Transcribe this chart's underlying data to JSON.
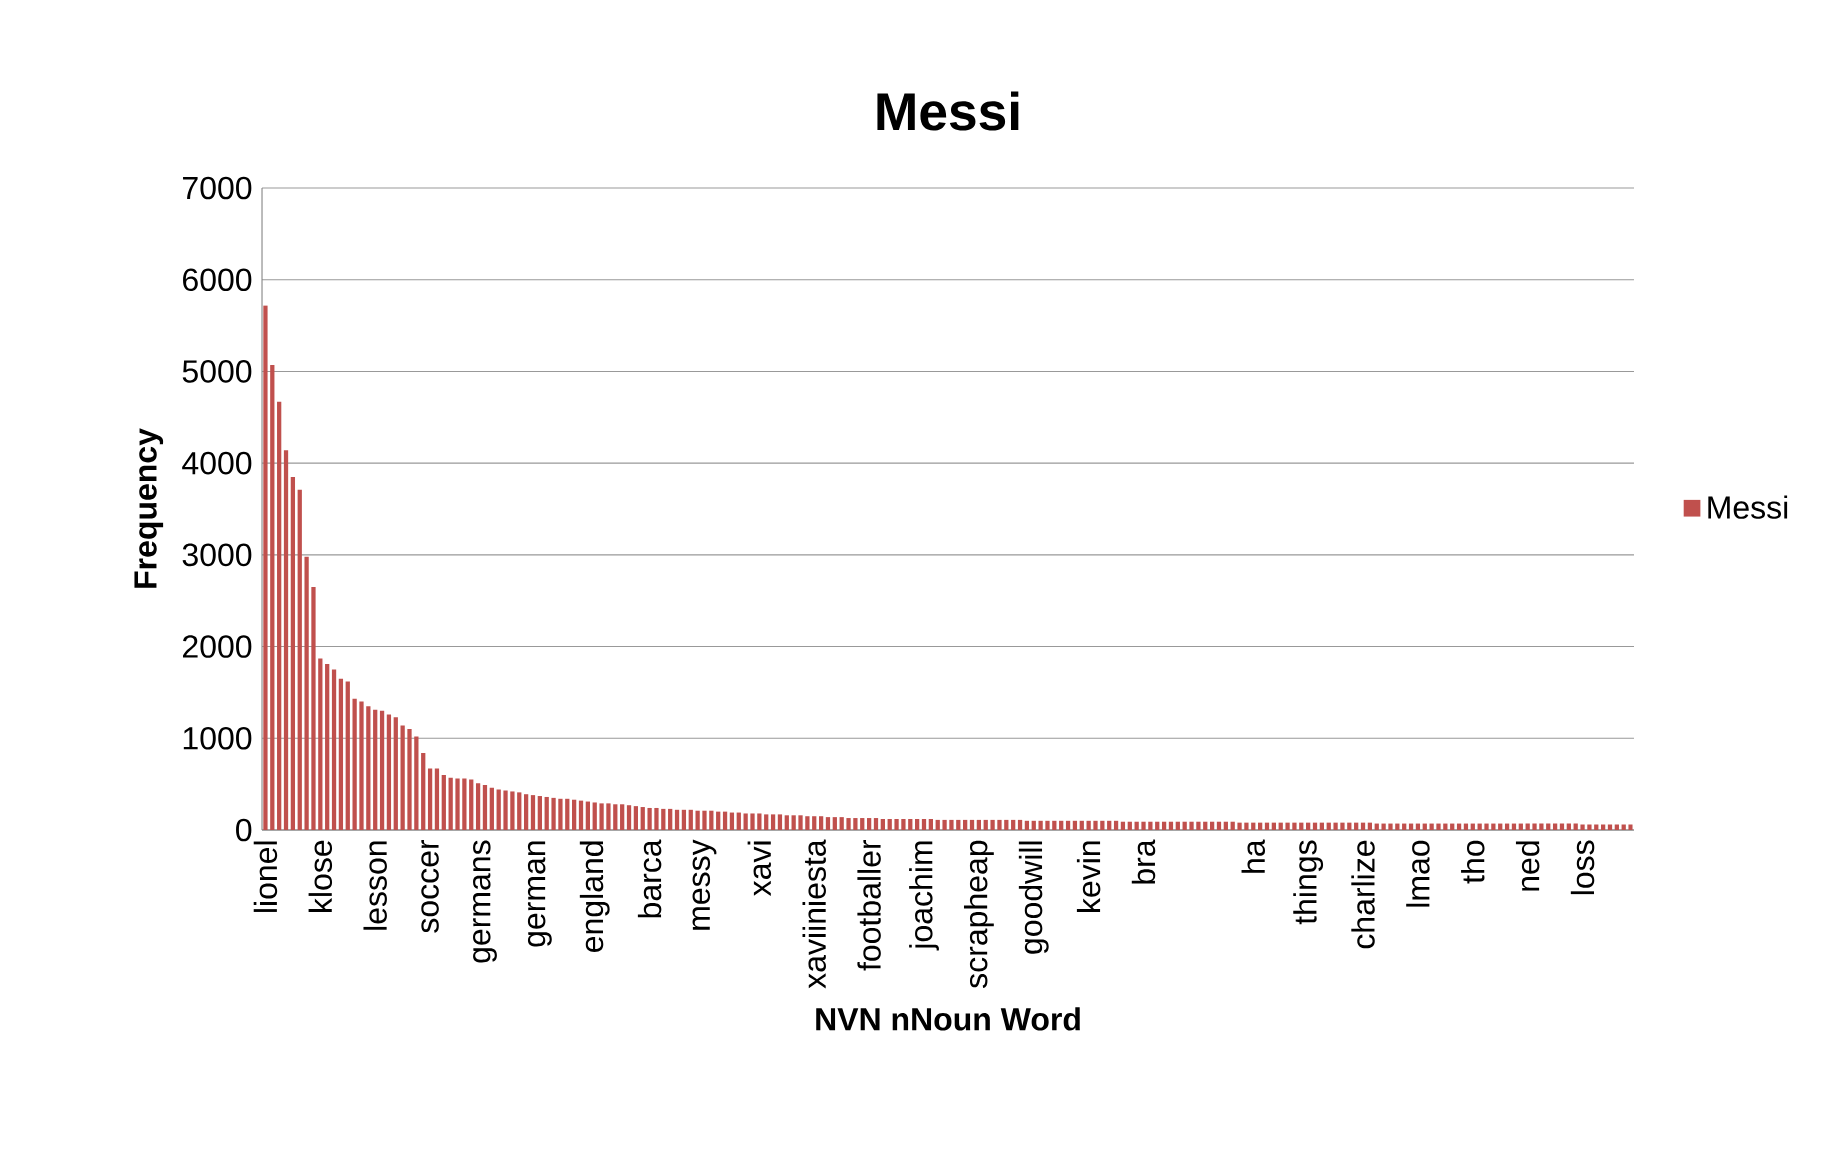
{
  "chart_data": {
    "type": "bar",
    "title": "Messi",
    "xlabel": "NVN nNoun Word",
    "ylabel": "Frequency",
    "categories": [
      "lionel",
      null,
      null,
      null,
      null,
      null,
      null,
      null,
      "klose",
      null,
      null,
      null,
      null,
      null,
      null,
      null,
      "lesson",
      null,
      null,
      null,
      null,
      null,
      null,
      null,
      "soccer",
      null,
      null,
      null,
      null,
      null,
      null,
      null,
      "germans",
      null,
      null,
      null,
      null,
      null,
      null,
      null,
      "german",
      null,
      null,
      null,
      null,
      null,
      null,
      null,
      "england",
      null,
      null,
      null,
      null,
      null,
      null,
      null,
      "barca",
      null,
      null,
      null,
      null,
      null,
      null,
      null,
      "messy",
      null,
      null,
      null,
      null,
      null,
      null,
      null,
      "xavi",
      null,
      null,
      null,
      null,
      null,
      null,
      null,
      "xaviiniesta",
      null,
      null,
      null,
      null,
      null,
      null,
      null,
      "footballer",
      null,
      null,
      null,
      null,
      null,
      null,
      null,
      "joachim",
      null,
      null,
      null,
      null,
      null,
      null,
      null,
      "scrapheap",
      null,
      null,
      null,
      null,
      null,
      null,
      null,
      "goodwill",
      null,
      null,
      null,
      null,
      null,
      null,
      null,
      "kevin",
      null,
      null,
      null,
      null,
      null,
      null,
      null,
      "bra",
      null,
      null,
      null,
      null,
      null,
      null,
      null,
      null,
      null,
      null,
      null,
      null,
      null,
      null,
      null,
      "ha",
      null,
      null,
      null,
      null,
      null,
      null,
      null,
      "things",
      null,
      null,
      null,
      null,
      null,
      null,
      null,
      "charlize",
      null,
      null,
      null,
      null,
      null,
      null,
      null,
      "lmao",
      null,
      null,
      null,
      null,
      null,
      null,
      null,
      "tho",
      null,
      null,
      null,
      null,
      null,
      null,
      null,
      "ned",
      null,
      null,
      null,
      null,
      null,
      null,
      null,
      "loss",
      null,
      null,
      null,
      null,
      null,
      null,
      null
    ],
    "series": [
      {
        "name": "Messi",
        "color": "#c0504d",
        "values": [
          5720,
          5070,
          4670,
          4140,
          3850,
          3710,
          2980,
          2650,
          1870,
          1810,
          1750,
          1650,
          1620,
          1430,
          1400,
          1350,
          1310,
          1300,
          1260,
          1230,
          1140,
          1100,
          1020,
          840,
          670,
          670,
          600,
          570,
          560,
          560,
          550,
          510,
          490,
          460,
          440,
          430,
          420,
          410,
          390,
          380,
          370,
          360,
          350,
          340,
          340,
          330,
          320,
          310,
          300,
          290,
          290,
          280,
          280,
          270,
          260,
          250,
          240,
          240,
          230,
          230,
          220,
          220,
          220,
          210,
          210,
          210,
          200,
          200,
          190,
          190,
          180,
          180,
          180,
          170,
          170,
          170,
          160,
          160,
          160,
          150,
          150,
          150,
          140,
          140,
          140,
          130,
          130,
          130,
          130,
          130,
          120,
          120,
          120,
          120,
          120,
          120,
          120,
          120,
          110,
          110,
          110,
          110,
          110,
          110,
          110,
          110,
          110,
          110,
          110,
          110,
          110,
          100,
          100,
          100,
          100,
          100,
          100,
          100,
          100,
          100,
          100,
          100,
          100,
          100,
          100,
          90,
          90,
          90,
          90,
          90,
          90,
          90,
          90,
          90,
          90,
          90,
          90,
          90,
          90,
          90,
          90,
          90,
          80,
          80,
          80,
          80,
          80,
          80,
          80,
          80,
          80,
          80,
          80,
          80,
          80,
          80,
          80,
          80,
          80,
          80,
          80,
          80,
          70,
          70,
          70,
          70,
          70,
          70,
          70,
          70,
          70,
          70,
          70,
          70,
          70,
          70,
          70,
          70,
          70,
          70,
          70,
          70,
          70,
          70,
          70,
          70,
          70,
          70,
          70,
          70,
          70,
          70,
          60,
          60,
          60,
          60,
          60,
          60,
          60,
          60
        ]
      }
    ],
    "ylim": [
      0,
      7000
    ],
    "yticks": [
      0,
      1000,
      2000,
      3000,
      4000,
      5000,
      6000,
      7000
    ],
    "grid": "y",
    "legend": "right"
  }
}
